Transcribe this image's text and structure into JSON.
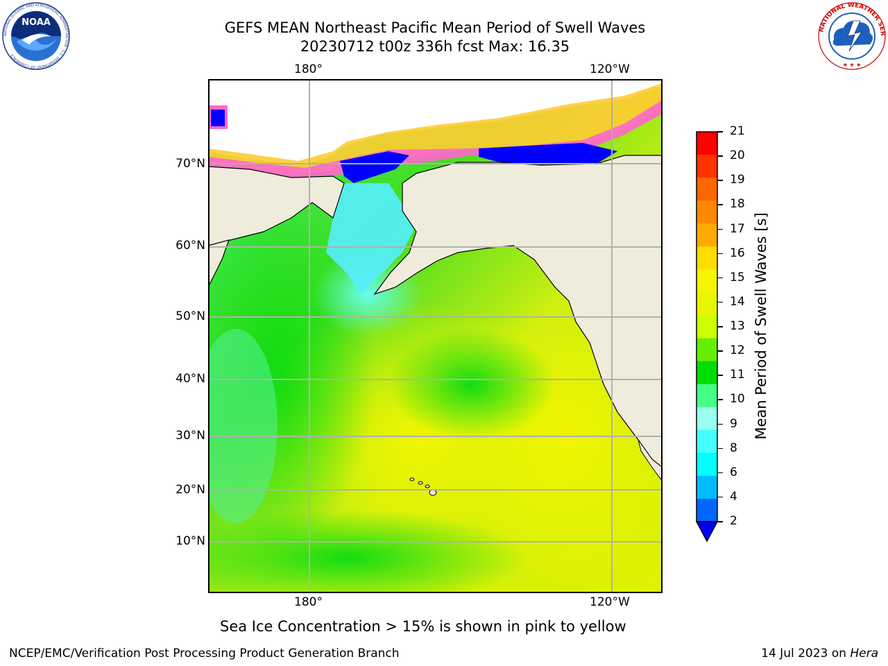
{
  "title": {
    "line1": "GEFS MEAN Northeast Pacific Mean Period of Swell Waves",
    "line2": "20230712 t00z 336h fcst   Max: 16.35"
  },
  "logos": {
    "noaa_text": "NOAA",
    "noaa_ring": "NATIONAL OCEANIC AND ATMOSPHERIC ADMINISTRATION · U.S. DEPARTMENT OF COMMERCE",
    "nws_ring": "NATIONAL WEATHER SERVICE"
  },
  "map": {
    "lon_labels": [
      "180°",
      "120°W"
    ],
    "lat_labels": [
      "70°N",
      "60°N",
      "50°N",
      "40°N",
      "30°N",
      "20°N",
      "10°N"
    ],
    "colors": {
      "land": "#efecdc",
      "ice_pink": "#ff66cc",
      "ice_yellow": "#ffcc33",
      "grid": "#b0b0b0"
    }
  },
  "colorbar": {
    "label": "Mean Period of Swell Waves [s]",
    "ticks": [
      "21",
      "20",
      "19",
      "18",
      "17",
      "16",
      "15",
      "14",
      "13",
      "12",
      "11",
      "10",
      "9",
      "8",
      "6",
      "4",
      "2"
    ],
    "colors": [
      "#ff0000",
      "#ff3300",
      "#ff6600",
      "#ff8800",
      "#ffaa00",
      "#ffdd00",
      "#f5f500",
      "#e8f500",
      "#ccff00",
      "#66ee00",
      "#00dd00",
      "#44ff88",
      "#99ffee",
      "#44ffff",
      "#00ffff",
      "#00bbff",
      "#0066ff"
    ],
    "extend_color": "#0000ff"
  },
  "caption": "Sea Ice Concentration > 15% is shown in pink to yellow",
  "footer": {
    "left": "NCEP/EMC/Verification Post Processing Product Generation Branch",
    "right_prefix": "14 Jul 2023 on ",
    "right_host": "Hera"
  }
}
